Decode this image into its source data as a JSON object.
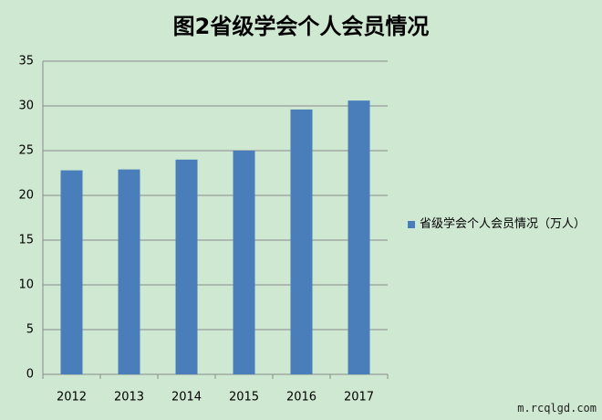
{
  "chart_data": {
    "type": "bar",
    "title": "图2省级学会个人会员情况",
    "categories": [
      "2012",
      "2013",
      "2014",
      "2015",
      "2016",
      "2017"
    ],
    "series": [
      {
        "name": "省级学会个人会员情况（万人）",
        "color": "#4a7ebb",
        "values": [
          22.8,
          22.9,
          24.0,
          25.0,
          29.6,
          30.6
        ]
      }
    ],
    "ylim": [
      0,
      35
    ],
    "yticks": [
      0,
      5,
      10,
      15,
      20,
      25,
      30,
      35
    ],
    "grid": true,
    "legend": "right"
  },
  "watermark": "m.rcqlgd.com"
}
